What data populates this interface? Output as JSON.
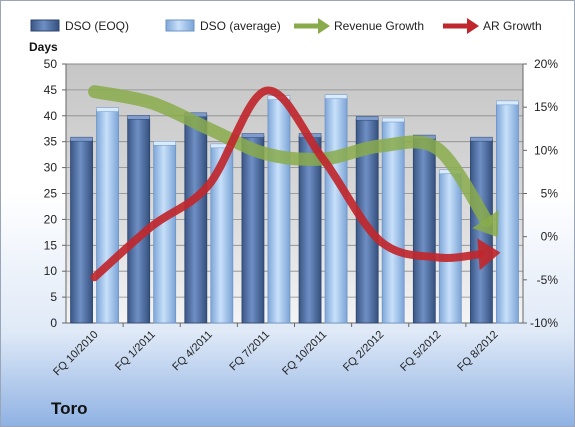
{
  "company": "Toro",
  "chart_data": {
    "type": "bar",
    "categories": [
      "FQ 10/2010",
      "FQ 1/2011",
      "FQ 4/2011",
      "FQ 7/2011",
      "FQ 10/2011",
      "FQ 2/2012",
      "FQ 5/2012",
      "FQ 8/2012"
    ],
    "ylabel": "Days",
    "ylim": [
      0,
      50
    ],
    "y_ticks": [
      "0",
      "5",
      "10",
      "15",
      "20",
      "25",
      "30",
      "35",
      "40",
      "45",
      "50"
    ],
    "y2lim": [
      -10,
      20
    ],
    "y2_ticks": [
      "-10%",
      "-5%",
      "0%",
      "5%",
      "10%",
      "15%",
      "20%"
    ],
    "legend_position": "top",
    "grid": true,
    "series": [
      {
        "name": "DSO (EOQ)",
        "type": "bar",
        "color": "#4f6fa6",
        "values": [
          35.3,
          39.5,
          40.0,
          36.0,
          36.0,
          39.3,
          35.7,
          35.3
        ]
      },
      {
        "name": "DSO (average)",
        "type": "bar",
        "color": "#9dc3ec",
        "values": [
          41.0,
          34.5,
          34.0,
          43.3,
          43.5,
          39.0,
          29.0,
          42.3
        ]
      },
      {
        "name": "Revenue Growth",
        "type": "line",
        "axis": "secondary",
        "color": "#8aab4b",
        "values": [
          16.8,
          15.5,
          12.5,
          9.6,
          9.0,
          10.5,
          10.2,
          0.5
        ]
      },
      {
        "name": "AR Growth",
        "type": "line",
        "axis": "secondary",
        "color": "#c0272d",
        "values": [
          -4.7,
          1.2,
          6.0,
          16.9,
          9.0,
          -0.5,
          -2.4,
          -1.9
        ]
      }
    ]
  }
}
